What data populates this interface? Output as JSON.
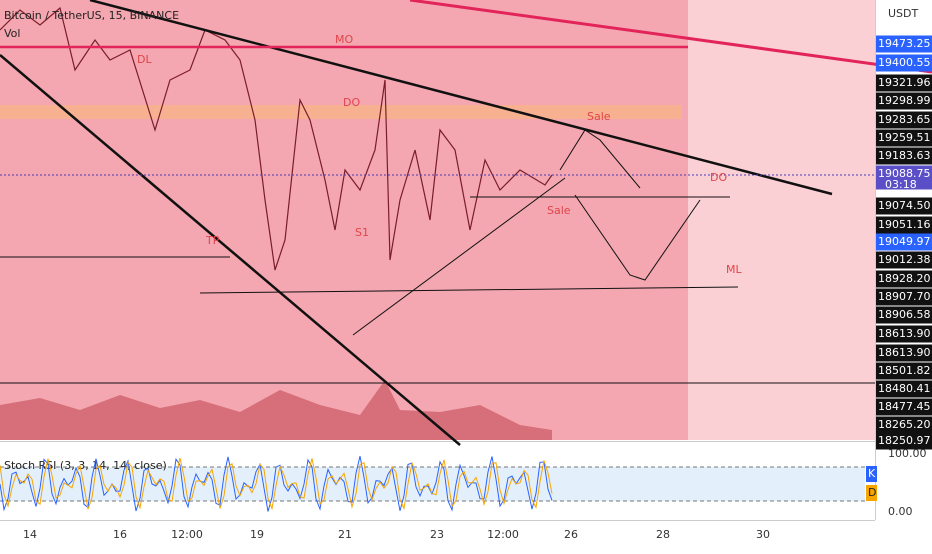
{
  "header": {
    "title": "Bitcoin / TetherUS, 15, BINANCE",
    "volume_label": "Vol",
    "currency": "USDT"
  },
  "annotations": [
    "MO",
    "DL",
    "DO",
    "Sale",
    "DO",
    "Sale",
    "S1",
    "TP",
    "ML"
  ],
  "price_axis": {
    "labels": [
      "19473.25",
      "19400.55",
      "19321.96",
      "19298.99",
      "19283.65",
      "19259.51",
      "19183.63",
      "19088.75",
      "19074.50",
      "19051.16",
      "19049.97",
      "19012.38",
      "18928.20",
      "18907.70",
      "18906.58",
      "18613.90",
      "18613.90",
      "18501.82",
      "18480.41",
      "18477.45",
      "18265.20",
      "18250.97"
    ],
    "countdown": "03:18"
  },
  "time_axis": {
    "labels": [
      "14",
      "16",
      "12:00",
      "19",
      "21",
      "23",
      "12:00",
      "26",
      "28",
      "30"
    ]
  },
  "indicator": {
    "title": "Stoch RSI (3, 3, 14, 14, close)",
    "labels": [
      "100.00",
      "0.00"
    ],
    "k": "K",
    "d": "D"
  }
}
